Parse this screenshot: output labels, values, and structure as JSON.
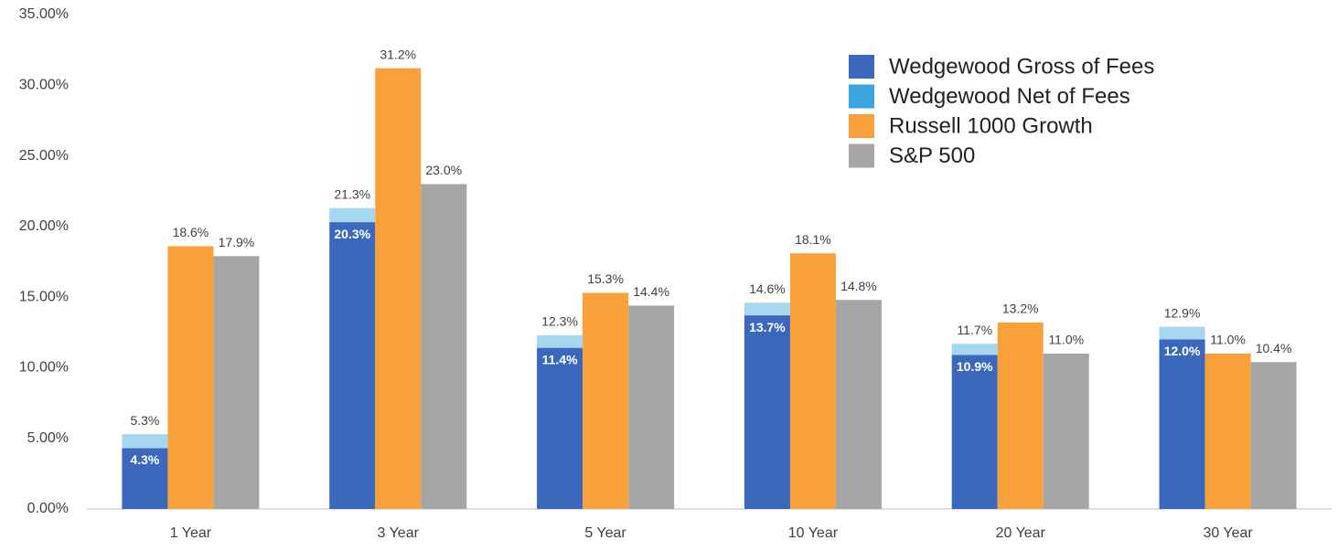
{
  "chart_data": {
    "type": "bar",
    "categories": [
      "1 Year",
      "3 Year",
      "5 Year",
      "10 Year",
      "20 Year",
      "30 Year"
    ],
    "series": [
      {
        "name": "Wedgewood Gross of Fees",
        "color": "#3b68bd",
        "values": [
          4.3,
          20.3,
          11.4,
          13.7,
          10.9,
          12.0
        ],
        "value_labels": [
          "4.3%",
          "20.3%",
          "11.4%",
          "13.7%",
          "10.9%",
          "12.0%"
        ]
      },
      {
        "name": "Wedgewood Net of Fees",
        "color": "#3ba3dd",
        "values": [
          5.3,
          21.3,
          12.3,
          14.6,
          11.7,
          12.9
        ],
        "value_labels": [
          "5.3%",
          "21.3%",
          "12.3%",
          "14.6%",
          "11.7%",
          "12.9%"
        ]
      },
      {
        "name": "Russell 1000 Growth",
        "color": "#f8a13a",
        "values": [
          18.6,
          31.2,
          15.3,
          18.1,
          13.2,
          11.0
        ],
        "value_labels": [
          "18.6%",
          "31.2%",
          "15.3%",
          "18.1%",
          "13.2%",
          "11.0%"
        ]
      },
      {
        "name": "S&P 500",
        "color": "#a5a5a5",
        "values": [
          17.9,
          23.0,
          14.4,
          14.8,
          11.0,
          10.4
        ],
        "value_labels": [
          "17.9%",
          "23.0%",
          "14.4%",
          "14.8%",
          "11.0%",
          "10.4%"
        ]
      }
    ],
    "ylim": [
      0,
      35
    ],
    "yticks": [
      {
        "value": 0,
        "label": "0.00%"
      },
      {
        "value": 5,
        "label": "5.00%"
      },
      {
        "value": 10,
        "label": "10.00%"
      },
      {
        "value": 15,
        "label": "15.00%"
      },
      {
        "value": 20,
        "label": "20.00%"
      },
      {
        "value": 25,
        "label": "25.00%"
      },
      {
        "value": 30,
        "label": "30.00%"
      },
      {
        "value": 35,
        "label": "35.00%"
      }
    ],
    "grid": false,
    "legend": "upper-right"
  }
}
